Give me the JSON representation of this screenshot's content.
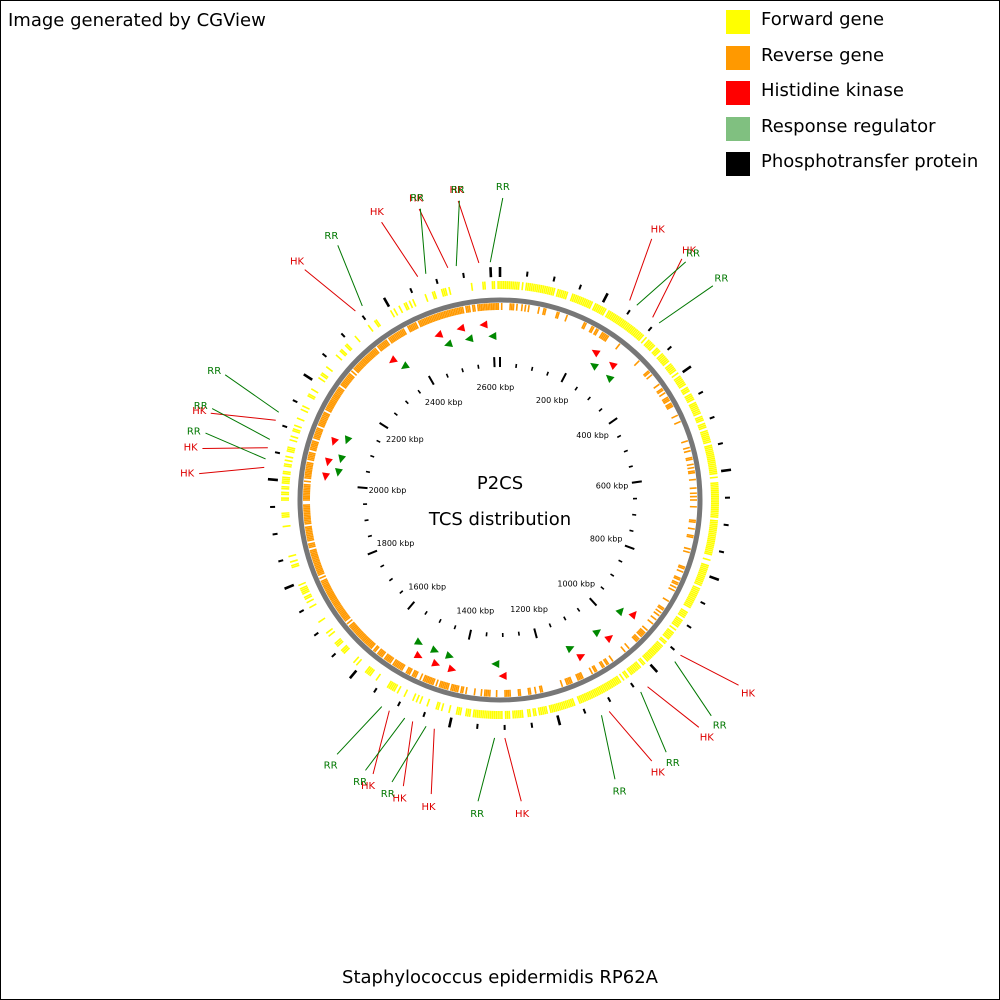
{
  "header": {
    "credit": "Image generated by CGView"
  },
  "footer": {
    "organism": "Staphylococcus epidermidis RP62A"
  },
  "center": {
    "title": "P2CS",
    "subtitle": "TCS distribution"
  },
  "legend": [
    {
      "label": "Forward gene",
      "color": "#FFFF00"
    },
    {
      "label": "Reverse gene",
      "color": "#FF9900"
    },
    {
      "label": "Histidine kinase",
      "color": "#FF0000"
    },
    {
      "label": "Response regulator",
      "color": "#80C080"
    },
    {
      "label": "Phosphotransfer protein",
      "color": "#000000"
    }
  ],
  "genome": {
    "length_kbp": 2617,
    "tick_labels": [
      {
        "kbp": 200,
        "label": "200 kbp"
      },
      {
        "kbp": 400,
        "label": "400 kbp"
      },
      {
        "kbp": 600,
        "label": "600 kbp"
      },
      {
        "kbp": 800,
        "label": "800 kbp"
      },
      {
        "kbp": 1000,
        "label": "1000 kbp"
      },
      {
        "kbp": 1200,
        "label": "1200 kbp"
      },
      {
        "kbp": 1400,
        "label": "1400 kbp"
      },
      {
        "kbp": 1600,
        "label": "1600 kbp"
      },
      {
        "kbp": 1800,
        "label": "1800 kbp"
      },
      {
        "kbp": 2000,
        "label": "2000 kbp"
      },
      {
        "kbp": 2200,
        "label": "2200 kbp"
      },
      {
        "kbp": 2400,
        "label": "2400 kbp"
      },
      {
        "kbp": 2600,
        "label": "2600 kbp"
      }
    ]
  },
  "tcs_features": [
    {
      "kbp": 2580,
      "type": "HK",
      "label": "HK",
      "strand": "reverse"
    },
    {
      "kbp": 2600,
      "type": "RR",
      "label": "RR",
      "strand": "reverse"
    },
    {
      "kbp": 2525,
      "type": "HK",
      "label": "HK",
      "strand": "reverse"
    },
    {
      "kbp": 2540,
      "type": "RR",
      "label": "RR",
      "strand": "reverse"
    },
    {
      "kbp": 2470,
      "type": "HK",
      "label": "HK",
      "strand": "reverse"
    },
    {
      "kbp": 2485,
      "type": "RR",
      "label": "RR",
      "strand": "reverse"
    },
    {
      "kbp": 2345,
      "type": "HK",
      "label": "HK",
      "strand": "reverse"
    },
    {
      "kbp": 2360,
      "type": "RR",
      "label": "RR",
      "strand": "reverse"
    },
    {
      "kbp": 2105,
      "type": "HK",
      "label": "HK",
      "strand": "reverse"
    },
    {
      "kbp": 2120,
      "type": "RR",
      "label": "RR",
      "strand": "reverse"
    },
    {
      "kbp": 2055,
      "type": "HK",
      "label": "HK",
      "strand": "reverse"
    },
    {
      "kbp": 2070,
      "type": "RR",
      "label": "RR",
      "strand": "reverse"
    },
    {
      "kbp": 2020,
      "type": "HK",
      "label": "HK",
      "strand": "reverse"
    },
    {
      "kbp": 2035,
      "type": "RR",
      "label": "RR",
      "strand": "reverse"
    },
    {
      "kbp": 1510,
      "type": "HK",
      "label": "HK",
      "strand": "reverse"
    },
    {
      "kbp": 1525,
      "type": "RR",
      "label": "RR",
      "strand": "reverse"
    },
    {
      "kbp": 1465,
      "type": "HK",
      "label": "HK",
      "strand": "reverse"
    },
    {
      "kbp": 1480,
      "type": "RR",
      "label": "RR",
      "strand": "reverse"
    },
    {
      "kbp": 1425,
      "type": "HK",
      "label": "HK",
      "strand": "reverse"
    },
    {
      "kbp": 1440,
      "type": "RR",
      "label": "RR",
      "strand": "reverse"
    },
    {
      "kbp": 1300,
      "type": "HK",
      "label": "HK",
      "strand": "forward"
    },
    {
      "kbp": 1318,
      "type": "RR",
      "label": "RR",
      "strand": "forward"
    },
    {
      "kbp": 1110,
      "type": "HK",
      "label": "HK",
      "strand": "reverse"
    },
    {
      "kbp": 1125,
      "type": "RR",
      "label": "RR",
      "strand": "reverse"
    },
    {
      "kbp": 1030,
      "type": "HK",
      "label": "HK",
      "strand": "reverse"
    },
    {
      "kbp": 1045,
      "type": "RR",
      "label": "RR",
      "strand": "reverse"
    },
    {
      "kbp": 950,
      "type": "HK",
      "label": "HK",
      "strand": "reverse"
    },
    {
      "kbp": 965,
      "type": "RR",
      "label": "RR",
      "strand": "reverse"
    },
    {
      "kbp": 290,
      "type": "HK",
      "label": "HK",
      "strand": "reverse"
    },
    {
      "kbp": 305,
      "type": "RR",
      "label": "RR",
      "strand": "reverse"
    },
    {
      "kbp": 240,
      "type": "HK",
      "label": "HK",
      "strand": "reverse"
    },
    {
      "kbp": 255,
      "type": "RR",
      "label": "RR",
      "strand": "reverse"
    }
  ]
}
